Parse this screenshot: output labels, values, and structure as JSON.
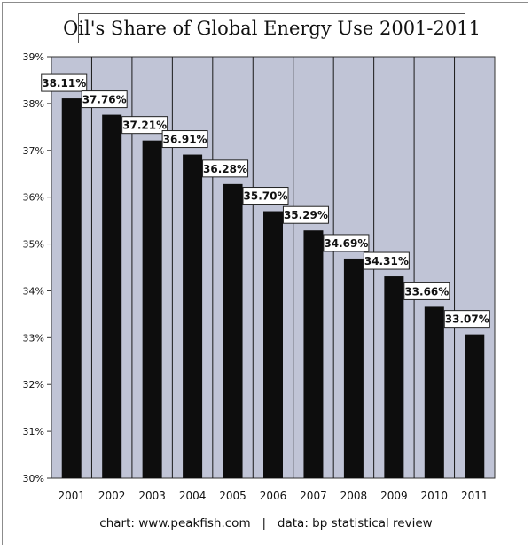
{
  "title": "Oil's Share of Global Energy Use 2001-2011",
  "footer": {
    "source_chart": "chart: www.peakfish.com",
    "separator": "|",
    "source_data": "data: bp statistical review"
  },
  "colors": {
    "plot_background": "#c0c4d6",
    "bar": "#0d0d0d",
    "gridline": "#1a1a1a",
    "label_box": "#ffffff"
  },
  "chart_data": {
    "type": "bar",
    "title": "Oil's Share of Global Energy Use 2001-2011",
    "categories": [
      "2001",
      "2002",
      "2003",
      "2004",
      "2005",
      "2006",
      "2007",
      "2008",
      "2009",
      "2010",
      "2011"
    ],
    "values": [
      38.11,
      37.76,
      37.21,
      36.91,
      36.28,
      35.7,
      35.29,
      34.69,
      34.31,
      33.66,
      33.07
    ],
    "data_labels": [
      "38.11%",
      "37.76%",
      "37.21%",
      "36.91%",
      "36.28%",
      "35.70%",
      "35.29%",
      "34.69%",
      "34.31%",
      "33.66%",
      "33.07%"
    ],
    "ylim": [
      30,
      39
    ],
    "yticks": [
      30,
      31,
      32,
      33,
      34,
      35,
      36,
      37,
      38,
      39
    ],
    "ytick_labels": [
      "30%",
      "31%",
      "32%",
      "33%",
      "34%",
      "35%",
      "36%",
      "37%",
      "38%",
      "39%"
    ],
    "grid": "vertical gridlines between categories",
    "xlabel": "",
    "ylabel": ""
  }
}
